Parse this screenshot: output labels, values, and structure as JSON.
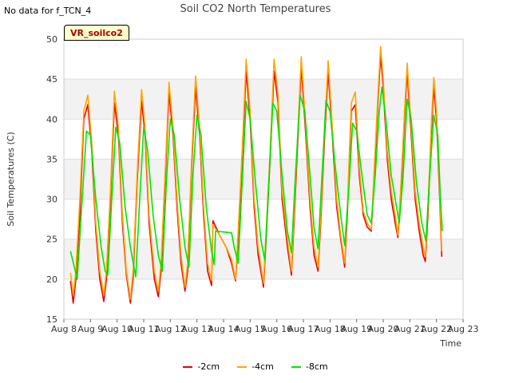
{
  "header": {
    "no_data": "No data for f_TCN_4",
    "title": "Soil CO2 North Temperatures",
    "tag": "VR_soilco2"
  },
  "chart_data": {
    "type": "line",
    "title": "Soil CO2 North Temperatures",
    "xlabel": "Time",
    "ylabel": "Soil Temperatures (C)",
    "xlim": [
      0,
      15
    ],
    "ylim": [
      15,
      50
    ],
    "x_ticks": [
      0,
      1,
      2,
      3,
      4,
      5,
      6,
      7,
      8,
      9,
      10,
      11,
      12,
      13,
      14,
      15
    ],
    "x_tick_labels": [
      "Aug 8",
      "Aug 9",
      "Aug 10",
      "Aug 11",
      "Aug 12",
      "Aug 13",
      "Aug 14",
      "Aug 15",
      "Aug 16",
      "Aug 17",
      "Aug 18",
      "Aug 19",
      "Aug 20",
      "Aug 21",
      "Aug 22",
      "Aug 23"
    ],
    "y_ticks": [
      15,
      20,
      25,
      30,
      35,
      40,
      45,
      50
    ],
    "grid": true,
    "legend_position": "bottom",
    "series": [
      {
        "name": "-2cm",
        "color": "#e8000b",
        "points": [
          [
            0.25,
            19.8
          ],
          [
            0.35,
            17
          ],
          [
            0.45,
            20
          ],
          [
            0.6,
            28
          ],
          [
            0.75,
            40
          ],
          [
            0.9,
            41.8
          ],
          [
            1.05,
            36
          ],
          [
            1.2,
            26
          ],
          [
            1.35,
            20
          ],
          [
            1.5,
            17.2
          ],
          [
            1.6,
            20
          ],
          [
            1.75,
            30
          ],
          [
            1.9,
            42
          ],
          [
            2.05,
            38
          ],
          [
            2.2,
            27
          ],
          [
            2.35,
            20.5
          ],
          [
            2.5,
            17
          ],
          [
            2.6,
            20
          ],
          [
            2.75,
            32
          ],
          [
            2.92,
            42.3
          ],
          [
            3.05,
            38
          ],
          [
            3.2,
            27
          ],
          [
            3.4,
            20
          ],
          [
            3.55,
            17.8
          ],
          [
            3.65,
            21
          ],
          [
            3.8,
            32
          ],
          [
            3.95,
            43.3
          ],
          [
            4.1,
            38
          ],
          [
            4.25,
            29
          ],
          [
            4.4,
            22
          ],
          [
            4.55,
            18.5
          ],
          [
            4.65,
            21
          ],
          [
            4.8,
            34
          ],
          [
            4.95,
            44
          ],
          [
            5.1,
            38
          ],
          [
            5.25,
            28
          ],
          [
            5.4,
            21
          ],
          [
            5.55,
            19.2
          ],
          [
            5.6,
            27.3
          ],
          [
            5.85,
            25.5
          ],
          [
            6.1,
            24
          ],
          [
            6.3,
            22
          ],
          [
            6.45,
            19.8
          ],
          [
            6.55,
            25
          ],
          [
            6.7,
            35
          ],
          [
            6.85,
            46
          ],
          [
            7.0,
            40
          ],
          [
            7.15,
            29
          ],
          [
            7.3,
            23
          ],
          [
            7.5,
            19
          ],
          [
            7.6,
            25
          ],
          [
            7.75,
            35
          ],
          [
            7.9,
            46
          ],
          [
            8.05,
            42
          ],
          [
            8.2,
            30
          ],
          [
            8.4,
            24
          ],
          [
            8.55,
            20.5
          ],
          [
            8.65,
            27
          ],
          [
            8.8,
            38
          ],
          [
            8.92,
            46.5
          ],
          [
            9.05,
            40
          ],
          [
            9.25,
            29
          ],
          [
            9.4,
            23
          ],
          [
            9.55,
            21
          ],
          [
            9.65,
            27
          ],
          [
            9.8,
            38
          ],
          [
            9.93,
            46
          ],
          [
            10.05,
            40
          ],
          [
            10.25,
            29
          ],
          [
            10.4,
            25
          ],
          [
            10.55,
            21.5
          ],
          [
            10.65,
            28
          ],
          [
            10.8,
            41
          ],
          [
            10.95,
            41.8
          ],
          [
            11.1,
            33
          ],
          [
            11.25,
            28
          ],
          [
            11.4,
            26.5
          ],
          [
            11.55,
            26
          ],
          [
            11.65,
            32
          ],
          [
            11.8,
            42
          ],
          [
            11.9,
            48
          ],
          [
            12.0,
            44
          ],
          [
            12.15,
            35
          ],
          [
            12.3,
            30
          ],
          [
            12.45,
            27
          ],
          [
            12.55,
            25.2
          ],
          [
            12.65,
            30
          ],
          [
            12.8,
            40
          ],
          [
            12.9,
            46
          ],
          [
            13.05,
            38
          ],
          [
            13.2,
            30
          ],
          [
            13.35,
            26
          ],
          [
            13.5,
            23
          ],
          [
            13.58,
            22.2
          ],
          [
            13.68,
            28
          ],
          [
            13.8,
            38
          ],
          [
            13.9,
            44
          ],
          [
            14.0,
            40
          ],
          [
            14.1,
            32
          ],
          [
            14.2,
            22.8
          ]
        ]
      },
      {
        "name": "-4cm",
        "color": "#ffa500",
        "points": [
          [
            0.25,
            20.8
          ],
          [
            0.35,
            18
          ],
          [
            0.45,
            21
          ],
          [
            0.6,
            30
          ],
          [
            0.75,
            41
          ],
          [
            0.9,
            43
          ],
          [
            1.05,
            37
          ],
          [
            1.2,
            27
          ],
          [
            1.35,
            21
          ],
          [
            1.5,
            18
          ],
          [
            1.6,
            21
          ],
          [
            1.75,
            31
          ],
          [
            1.9,
            43.5
          ],
          [
            2.05,
            39
          ],
          [
            2.2,
            28
          ],
          [
            2.35,
            21
          ],
          [
            2.5,
            17.5
          ],
          [
            2.6,
            21
          ],
          [
            2.75,
            33
          ],
          [
            2.92,
            43.7
          ],
          [
            3.05,
            39
          ],
          [
            3.2,
            28
          ],
          [
            3.4,
            21
          ],
          [
            3.55,
            18.5
          ],
          [
            3.65,
            22
          ],
          [
            3.8,
            33
          ],
          [
            3.95,
            44.6
          ],
          [
            4.1,
            39
          ],
          [
            4.25,
            30
          ],
          [
            4.4,
            23
          ],
          [
            4.55,
            19
          ],
          [
            4.65,
            22
          ],
          [
            4.8,
            35
          ],
          [
            4.95,
            45.4
          ],
          [
            5.1,
            39
          ],
          [
            5.25,
            29
          ],
          [
            5.4,
            22
          ],
          [
            5.55,
            19.8
          ],
          [
            5.6,
            26.8
          ],
          [
            5.85,
            25.5
          ],
          [
            6.1,
            24
          ],
          [
            6.3,
            22.5
          ],
          [
            6.45,
            20
          ],
          [
            6.55,
            26
          ],
          [
            6.7,
            36
          ],
          [
            6.85,
            47.5
          ],
          [
            7.0,
            41
          ],
          [
            7.15,
            30
          ],
          [
            7.3,
            24
          ],
          [
            7.5,
            19.5
          ],
          [
            7.6,
            26
          ],
          [
            7.75,
            36
          ],
          [
            7.9,
            47.5
          ],
          [
            8.05,
            43
          ],
          [
            8.2,
            31
          ],
          [
            8.4,
            25
          ],
          [
            8.55,
            21
          ],
          [
            8.65,
            28
          ],
          [
            8.8,
            39
          ],
          [
            8.92,
            47.8
          ],
          [
            9.05,
            41
          ],
          [
            9.25,
            30
          ],
          [
            9.4,
            24
          ],
          [
            9.55,
            21.5
          ],
          [
            9.65,
            28
          ],
          [
            9.8,
            39
          ],
          [
            9.93,
            47.3
          ],
          [
            10.05,
            41
          ],
          [
            10.25,
            30
          ],
          [
            10.4,
            25.5
          ],
          [
            10.55,
            22
          ],
          [
            10.65,
            29
          ],
          [
            10.8,
            42
          ],
          [
            10.95,
            43.4
          ],
          [
            11.1,
            34
          ],
          [
            11.25,
            28.5
          ],
          [
            11.4,
            27
          ],
          [
            11.55,
            26.2
          ],
          [
            11.65,
            33
          ],
          [
            11.8,
            43
          ],
          [
            11.9,
            49.1
          ],
          [
            12.0,
            45
          ],
          [
            12.15,
            36
          ],
          [
            12.3,
            31
          ],
          [
            12.45,
            28
          ],
          [
            12.55,
            25.5
          ],
          [
            12.65,
            31
          ],
          [
            12.8,
            41
          ],
          [
            12.9,
            47
          ],
          [
            13.05,
            39
          ],
          [
            13.2,
            31
          ],
          [
            13.35,
            27
          ],
          [
            13.5,
            24
          ],
          [
            13.58,
            22.8
          ],
          [
            13.68,
            29
          ],
          [
            13.8,
            39
          ],
          [
            13.9,
            45.2
          ],
          [
            14.0,
            41
          ],
          [
            14.1,
            33
          ],
          [
            14.2,
            23.5
          ]
        ]
      },
      {
        "name": "-8cm",
        "color": "#00e600",
        "points": [
          [
            0.25,
            23.5
          ],
          [
            0.5,
            20
          ],
          [
            0.65,
            28
          ],
          [
            0.85,
            38.5
          ],
          [
            1.0,
            38
          ],
          [
            1.2,
            30
          ],
          [
            1.4,
            24
          ],
          [
            1.55,
            21
          ],
          [
            1.65,
            20.5
          ],
          [
            1.8,
            30
          ],
          [
            1.95,
            39
          ],
          [
            2.1,
            37
          ],
          [
            2.3,
            29
          ],
          [
            2.5,
            24
          ],
          [
            2.7,
            20.3
          ],
          [
            2.85,
            30
          ],
          [
            3.0,
            39
          ],
          [
            3.15,
            36
          ],
          [
            3.35,
            28
          ],
          [
            3.55,
            23
          ],
          [
            3.7,
            21
          ],
          [
            3.85,
            32
          ],
          [
            4.0,
            40
          ],
          [
            4.15,
            38
          ],
          [
            4.35,
            30
          ],
          [
            4.55,
            24
          ],
          [
            4.7,
            21.5
          ],
          [
            4.85,
            33
          ],
          [
            5.0,
            40.5
          ],
          [
            5.15,
            38
          ],
          [
            5.35,
            29
          ],
          [
            5.55,
            23.5
          ],
          [
            5.65,
            21.8
          ],
          [
            5.7,
            26
          ],
          [
            6.3,
            25.8
          ],
          [
            6.4,
            24
          ],
          [
            6.55,
            22
          ],
          [
            6.7,
            32
          ],
          [
            6.85,
            42.2
          ],
          [
            7.0,
            40
          ],
          [
            7.2,
            32
          ],
          [
            7.4,
            25
          ],
          [
            7.55,
            22.3
          ],
          [
            7.7,
            32
          ],
          [
            7.85,
            42
          ],
          [
            8.0,
            41
          ],
          [
            8.2,
            33
          ],
          [
            8.4,
            26
          ],
          [
            8.55,
            23.3
          ],
          [
            8.7,
            33
          ],
          [
            8.88,
            43
          ],
          [
            9.05,
            41
          ],
          [
            9.25,
            33
          ],
          [
            9.4,
            26.5
          ],
          [
            9.55,
            23.8
          ],
          [
            9.7,
            33
          ],
          [
            9.85,
            42.3
          ],
          [
            10.0,
            41
          ],
          [
            10.2,
            34
          ],
          [
            10.4,
            28
          ],
          [
            10.55,
            24.2
          ],
          [
            10.7,
            31
          ],
          [
            10.85,
            39.5
          ],
          [
            11.0,
            38.5
          ],
          [
            11.2,
            33
          ],
          [
            11.4,
            28
          ],
          [
            11.55,
            27
          ],
          [
            11.7,
            33
          ],
          [
            11.85,
            41
          ],
          [
            11.95,
            44
          ],
          [
            12.1,
            40
          ],
          [
            12.3,
            33
          ],
          [
            12.5,
            29
          ],
          [
            12.6,
            27
          ],
          [
            12.75,
            33
          ],
          [
            12.9,
            42.5
          ],
          [
            13.05,
            40
          ],
          [
            13.25,
            32
          ],
          [
            13.45,
            27
          ],
          [
            13.6,
            24.8
          ],
          [
            13.75,
            33
          ],
          [
            13.9,
            40.5
          ],
          [
            14.05,
            38
          ],
          [
            14.15,
            30
          ],
          [
            14.22,
            26
          ]
        ]
      }
    ]
  }
}
